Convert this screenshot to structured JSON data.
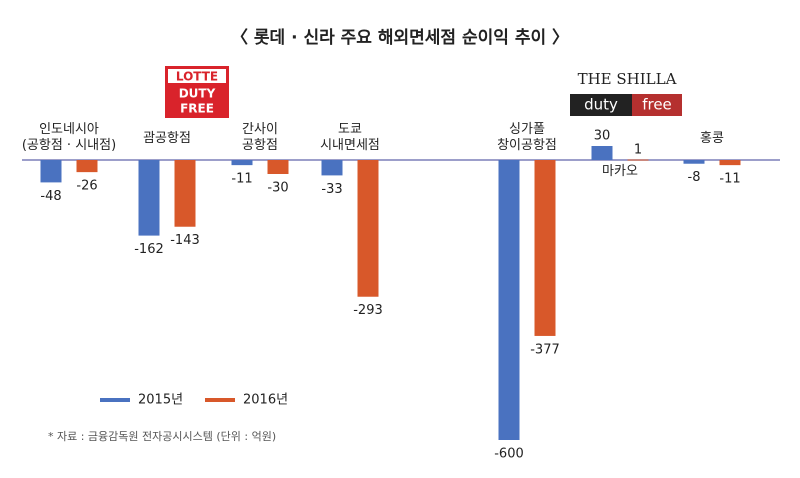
{
  "chart_data": {
    "type": "bar",
    "title": "〈 롯데 · 신라 주요 해외면세점 순이익 추이 〉",
    "note": "* 자료 : 금융감독원 전자공시시스템  (단위 : 억원)",
    "annotations": [
      "LOTTE",
      "DUTY",
      "FREE",
      "THE SHILLA",
      "duty",
      "free"
    ],
    "categories": [
      "인도네시아\n(공항점 · 시내점)",
      "괌공항점",
      "간사이\n공항점",
      "도쿄\n시내면세점",
      "싱가폴\n창이공항점",
      "마카오",
      "홍콩"
    ],
    "series": [
      {
        "name": "2015년",
        "color": "#4a72c0",
        "values": [
          -48,
          -162,
          -11,
          -33,
          -600,
          30,
          -8
        ]
      },
      {
        "name": "2016년",
        "color": "#d8582a",
        "values": [
          -26,
          -143,
          -30,
          -293,
          -377,
          1,
          -11
        ]
      }
    ],
    "ylim": [
      -600,
      30
    ],
    "legend": "bottom-left"
  }
}
